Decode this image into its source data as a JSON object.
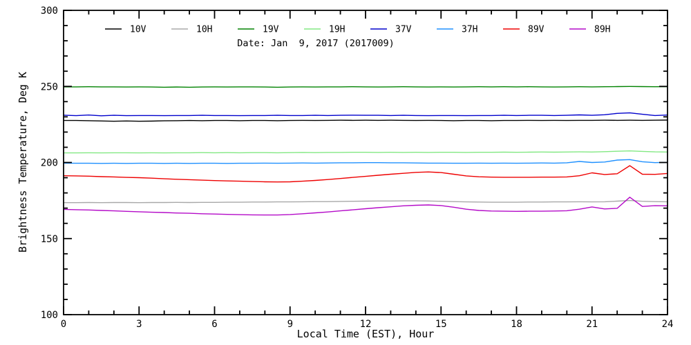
{
  "figure": {
    "background": "#ffffff",
    "frame_color": "#000000"
  },
  "annotation": {
    "date_label": "Date: Jan  9, 2017 (2017009)"
  },
  "axes": {
    "x_title": "Local Time (EST), Hour",
    "y_title": "Brightness Temperature, Deg K",
    "x_tick_labels": [
      "0",
      "3",
      "6",
      "9",
      "12",
      "15",
      "18",
      "21",
      "24"
    ],
    "y_tick_labels": [
      "100",
      "150",
      "200",
      "250",
      "300"
    ]
  },
  "chart_data": {
    "type": "line",
    "title": "Date: Jan  9, 2017 (2017009)",
    "xlabel": "Local Time (EST), Hour",
    "ylabel": "Brightness Temperature, Deg K",
    "xlim": [
      0,
      24
    ],
    "ylim": [
      100,
      300
    ],
    "x_major_tick_step": 3,
    "x_minor_tick_step": 1,
    "y_major_tick_step": 50,
    "y_minor_tick_step": 10,
    "grid": false,
    "legend_position": "top inside, single row",
    "x_step_hours": 0.5,
    "series": [
      {
        "name": "10V",
        "color": "#000000",
        "values": [
          227.6,
          227.6,
          227.5,
          227.3,
          227.1,
          227.3,
          227.1,
          227.2,
          227.4,
          227.5,
          227.6,
          227.5,
          227.6,
          227.6,
          227.5,
          227.6,
          227.6,
          227.5,
          227.6,
          227.7,
          227.6,
          227.7,
          227.8,
          227.7,
          227.8,
          227.7,
          227.8,
          227.7,
          227.6,
          227.7,
          227.6,
          227.5,
          227.6,
          227.6,
          227.5,
          227.6,
          227.6,
          227.7,
          227.6,
          227.7,
          227.6,
          227.7,
          227.7,
          227.8,
          227.7,
          227.8,
          227.7,
          227.8,
          227.9
        ]
      },
      {
        "name": "10H",
        "color": "#a8a8a8",
        "values": [
          173.6,
          173.6,
          173.7,
          173.6,
          173.7,
          173.7,
          173.6,
          173.7,
          173.7,
          173.8,
          173.7,
          173.8,
          173.8,
          173.9,
          173.9,
          174.0,
          174.0,
          174.1,
          174.1,
          174.2,
          174.3,
          174.3,
          174.4,
          174.5,
          174.6,
          174.7,
          174.7,
          174.8,
          174.8,
          174.7,
          174.5,
          174.3,
          174.1,
          174.0,
          173.9,
          173.9,
          173.9,
          174.0,
          174.0,
          174.1,
          174.1,
          174.2,
          174.1,
          174.2,
          174.6,
          175.0,
          174.5,
          174.3,
          174.2
        ]
      },
      {
        "name": "19V",
        "color": "#008200",
        "values": [
          249.7,
          249.7,
          249.8,
          249.7,
          249.7,
          249.6,
          249.7,
          249.6,
          249.5,
          249.6,
          249.5,
          249.6,
          249.7,
          249.6,
          249.7,
          249.7,
          249.6,
          249.5,
          249.6,
          249.7,
          249.6,
          249.7,
          249.7,
          249.8,
          249.7,
          249.6,
          249.7,
          249.8,
          249.7,
          249.6,
          249.7,
          249.6,
          249.7,
          249.8,
          249.7,
          249.8,
          249.7,
          249.8,
          249.7,
          249.6,
          249.7,
          249.8,
          249.7,
          249.8,
          249.9,
          250.0,
          249.9,
          249.8,
          249.9
        ]
      },
      {
        "name": "19H",
        "color": "#82e882",
        "values": [
          206.3,
          206.3,
          206.4,
          206.3,
          206.4,
          206.4,
          206.3,
          206.4,
          206.3,
          206.4,
          206.4,
          206.5,
          206.4,
          206.5,
          206.4,
          206.5,
          206.5,
          206.4,
          206.5,
          206.6,
          206.5,
          206.6,
          206.6,
          206.7,
          206.7,
          206.6,
          206.7,
          206.6,
          206.7,
          206.6,
          206.7,
          206.7,
          206.6,
          206.7,
          206.7,
          206.8,
          206.7,
          206.8,
          206.9,
          206.8,
          206.9,
          207.0,
          206.9,
          207.1,
          207.4,
          207.6,
          207.3,
          207.0,
          206.9
        ]
      },
      {
        "name": "37V",
        "color": "#0000cc",
        "values": [
          231.1,
          230.8,
          231.2,
          230.7,
          231.0,
          230.8,
          230.9,
          230.9,
          230.8,
          230.9,
          230.9,
          231.0,
          230.9,
          230.9,
          230.8,
          230.9,
          230.9,
          231.0,
          230.9,
          230.9,
          231.0,
          230.9,
          231.0,
          231.1,
          231.0,
          231.0,
          230.9,
          231.0,
          230.9,
          230.8,
          230.9,
          230.9,
          230.8,
          230.9,
          230.9,
          231.0,
          230.9,
          231.0,
          231.0,
          230.9,
          231.0,
          231.3,
          231.0,
          231.4,
          232.3,
          232.6,
          231.7,
          230.9,
          231.2
        ]
      },
      {
        "name": "37H",
        "color": "#1e90ff",
        "values": [
          199.6,
          199.5,
          199.5,
          199.4,
          199.5,
          199.4,
          199.5,
          199.5,
          199.4,
          199.5,
          199.4,
          199.5,
          199.5,
          199.4,
          199.5,
          199.5,
          199.6,
          199.5,
          199.6,
          199.7,
          199.6,
          199.7,
          199.8,
          199.8,
          199.9,
          199.9,
          199.8,
          199.8,
          199.7,
          199.6,
          199.6,
          199.5,
          199.5,
          199.6,
          199.5,
          199.6,
          199.5,
          199.6,
          199.7,
          199.6,
          199.8,
          200.7,
          200.0,
          200.3,
          201.6,
          201.9,
          200.5,
          199.9,
          200.1
        ]
      },
      {
        "name": "89V",
        "color": "#ee0000",
        "values": [
          191.3,
          191.2,
          191.0,
          190.7,
          190.5,
          190.2,
          190.0,
          189.7,
          189.3,
          189.0,
          188.7,
          188.4,
          188.1,
          187.9,
          187.7,
          187.5,
          187.3,
          187.2,
          187.3,
          187.7,
          188.2,
          188.8,
          189.5,
          190.2,
          190.9,
          191.6,
          192.3,
          192.9,
          193.5,
          193.8,
          193.4,
          192.3,
          191.2,
          190.6,
          190.4,
          190.3,
          190.3,
          190.3,
          190.4,
          190.4,
          190.5,
          191.3,
          193.2,
          192.1,
          192.6,
          197.9,
          192.3,
          192.2,
          192.8
        ]
      },
      {
        "name": "89H",
        "color": "#b40ac8",
        "values": [
          169.2,
          169.0,
          168.8,
          168.5,
          168.2,
          167.9,
          167.6,
          167.3,
          167.1,
          166.8,
          166.6,
          166.3,
          166.1,
          165.9,
          165.7,
          165.6,
          165.5,
          165.5,
          165.8,
          166.3,
          166.9,
          167.5,
          168.2,
          168.9,
          169.6,
          170.3,
          170.9,
          171.5,
          171.9,
          172.1,
          171.7,
          170.6,
          169.3,
          168.5,
          168.1,
          168.0,
          167.9,
          168.0,
          168.0,
          168.1,
          168.3,
          169.3,
          170.8,
          169.5,
          169.9,
          177.2,
          171.1,
          171.6,
          171.5
        ]
      }
    ]
  }
}
